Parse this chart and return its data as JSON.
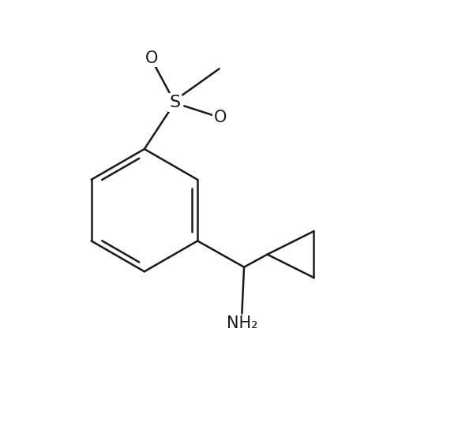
{
  "background_color": "#ffffff",
  "line_color": "#1a1a1a",
  "line_width": 1.8,
  "text_color": "#1a1a1a",
  "font_size_S": 16,
  "font_size_atom": 15,
  "font_size_nh2": 15,
  "figsize": [
    5.8,
    5.44
  ],
  "dpi": 100,
  "xlim": [
    0,
    10
  ],
  "ylim": [
    0,
    10
  ]
}
